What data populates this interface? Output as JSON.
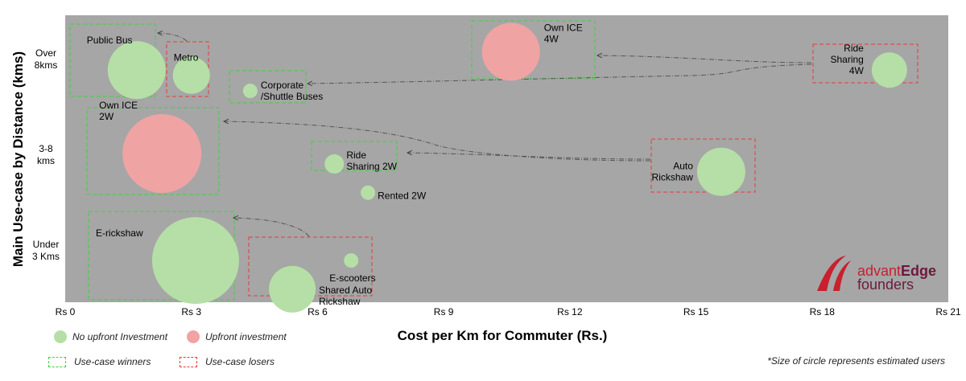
{
  "chart_data": {
    "type": "scatter",
    "xlabel": "Cost per Km for Commuter (Rs.)",
    "ylabel": "Main Use-case by Distance (kms)",
    "xlim": [
      0,
      21
    ],
    "x_ticks": [
      "Rs 0",
      "Rs 3",
      "Rs 6",
      "Rs 9",
      "Rs 12",
      "Rs 15",
      "Rs 18",
      "Rs 21"
    ],
    "y_categories": [
      {
        "label": [
          "Over",
          "8kms"
        ]
      },
      {
        "label": [
          "3-8",
          "kms"
        ]
      },
      {
        "label": [
          "Under",
          "3 Kms"
        ]
      }
    ],
    "colors": {
      "no_upfront": "#b5dfa6",
      "upfront": "#f0a3a3",
      "winner_box": "#3fd13f",
      "loser_box": "#e83a3a",
      "plot_bg": "#a6a6a6"
    },
    "points": [
      {
        "name": [
          "Public Bus"
        ],
        "x": 1.7,
        "y": 8.9,
        "size": 36,
        "investment": "none"
      },
      {
        "name": [
          "Metro"
        ],
        "x": 3.0,
        "y": 8.7,
        "size": 23,
        "investment": "none"
      },
      {
        "name": [
          "Corporate",
          "/Shuttle Buses"
        ],
        "x": 4.4,
        "y": 8.1,
        "size": 9,
        "investment": "none"
      },
      {
        "name": [
          "Own ICE",
          "4W"
        ],
        "x": 10.6,
        "y": 9.6,
        "size": 36,
        "investment": "upfront"
      },
      {
        "name": [
          "Ride",
          "Sharing",
          "4W"
        ],
        "x": 19.6,
        "y": 8.9,
        "size": 22,
        "investment": "none"
      },
      {
        "name": [
          "Own ICE",
          "2W"
        ],
        "x": 2.3,
        "y": 5.7,
        "size": 49,
        "investment": "upfront"
      },
      {
        "name": [
          "Ride",
          "Sharing 2W"
        ],
        "x": 6.4,
        "y": 5.3,
        "size": 12,
        "investment": "none"
      },
      {
        "name": [
          "Rented 2W"
        ],
        "x": 7.2,
        "y": 4.2,
        "size": 9,
        "investment": "none"
      },
      {
        "name": [
          "Auto",
          "Rickshaw"
        ],
        "x": 15.6,
        "y": 5.0,
        "size": 30,
        "investment": "none"
      },
      {
        "name": [
          "E-rickshaw"
        ],
        "x": 3.1,
        "y": 1.6,
        "size": 54,
        "investment": "none"
      },
      {
        "name": [
          "E-scooters"
        ],
        "x": 6.8,
        "y": 1.6,
        "size": 9,
        "investment": "none"
      },
      {
        "name": [
          "Shared Auto",
          "Rickshaw"
        ],
        "x": 5.4,
        "y": 0.5,
        "size": 29,
        "investment": "none"
      }
    ]
  },
  "legend": {
    "no_upfront": "No upfront Investment",
    "upfront": "Upfront investment",
    "winners": "Use-case winners",
    "losers": "Use-case losers"
  },
  "note": "*Size of circle represents estimated users",
  "logo": {
    "word_part1": "advant",
    "word_part2": "Edge",
    "word_line2": "founders"
  }
}
